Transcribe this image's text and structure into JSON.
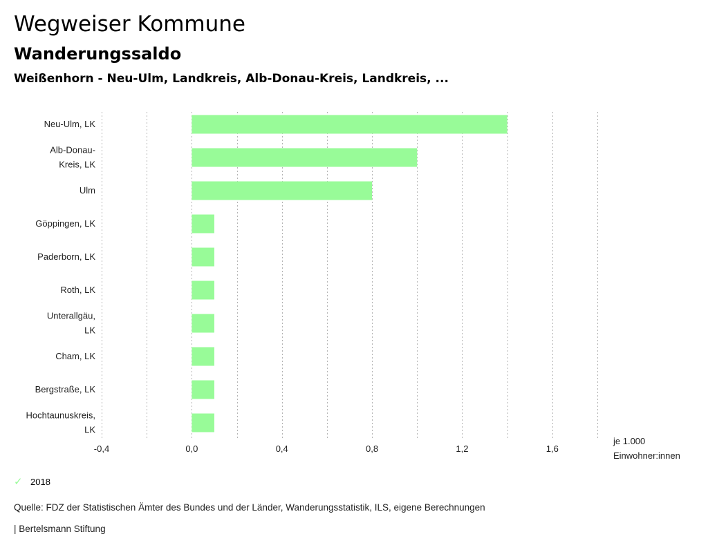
{
  "header": {
    "title": "Wegweiser Kommune",
    "subtitle": "Wanderungssaldo",
    "region": "Weißenhorn - Neu-Ulm, Landkreis, Alb-Donau-Kreis, Landkreis, ..."
  },
  "chart_data": {
    "type": "bar",
    "orientation": "horizontal",
    "title": "Wanderungssaldo",
    "xlabel": "je 1.000 Einwohner:innen",
    "ylabel": "",
    "categories": [
      [
        "Neu-Ulm, LK"
      ],
      [
        "Alb-Donau-",
        "Kreis, LK"
      ],
      [
        "Ulm"
      ],
      [
        "Göppingen, LK"
      ],
      [
        "Paderborn, LK"
      ],
      [
        "Roth, LK"
      ],
      [
        "Unterallgäu,",
        "LK"
      ],
      [
        "Cham, LK"
      ],
      [
        "Bergstraße, LK"
      ],
      [
        "Hochtaunuskreis,",
        "LK"
      ]
    ],
    "series": [
      {
        "name": "2018",
        "color": "#98fb98",
        "values": [
          1.4,
          1.0,
          0.8,
          0.1,
          0.1,
          0.1,
          0.1,
          0.1,
          0.1,
          0.1
        ]
      }
    ],
    "xlim": [
      -0.4,
      1.8
    ],
    "grid_step": 0.2,
    "ticks": [
      -0.4,
      0.0,
      0.4,
      0.8,
      1.2,
      1.6
    ],
    "tick_labels": [
      "-0,4",
      "0,0",
      "0,4",
      "0,8",
      "1,2",
      "1,6"
    ],
    "unit_lines": [
      "je 1.000",
      "Einwohner:innen"
    ],
    "grid": true,
    "legend_position": "bottom-left"
  },
  "legend": {
    "label": "2018",
    "icon": "check-icon",
    "color": "#98fb98"
  },
  "footer": {
    "source": "Quelle: FDZ der Statistischen Ämter des Bundes und der Länder, Wanderungsstatistik, ILS, eigene Berechnungen",
    "brand": "| Bertelsmann Stiftung"
  }
}
